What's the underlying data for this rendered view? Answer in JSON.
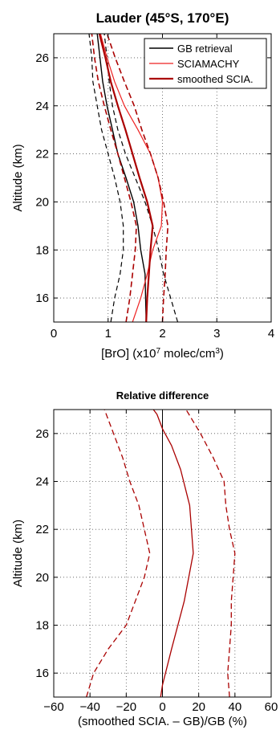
{
  "chart_data": [
    {
      "type": "line",
      "title": "Lauder (45°S, 170°E)",
      "ylabel": "Altitude (km)",
      "xlabel_parts": [
        "[BrO] (x10",
        "7",
        " molec/cm",
        "3",
        ")"
      ],
      "xlim": [
        0,
        4
      ],
      "ylim": [
        15,
        27
      ],
      "xticks": [
        "0",
        "1",
        "2",
        "3",
        "4"
      ],
      "yticks": [
        "16",
        "18",
        "20",
        "22",
        "24",
        "26"
      ],
      "grid": true,
      "legend_position": "top-right",
      "legend": [
        "GB retrieval",
        "SCIAMACHY",
        "smoothed SCIA."
      ],
      "series": [
        {
          "name": "GB retrieval",
          "color": "#000000",
          "width": 1.4,
          "dash": "",
          "legend": true,
          "points": [
            [
              1.7,
              15
            ],
            [
              1.69,
              16
            ],
            [
              1.68,
              17
            ],
            [
              1.6,
              18
            ],
            [
              1.55,
              19
            ],
            [
              1.47,
              20
            ],
            [
              1.33,
              21
            ],
            [
              1.18,
              22
            ],
            [
              1.08,
              23
            ],
            [
              0.98,
              24
            ],
            [
              0.9,
              25
            ],
            [
              0.85,
              26
            ],
            [
              0.8,
              27
            ]
          ]
        },
        {
          "name": "GB upper",
          "color": "#000000",
          "width": 1.2,
          "dash": "6,4",
          "legend": false,
          "points": [
            [
              2.28,
              15
            ],
            [
              2.15,
              16
            ],
            [
              2.02,
              17
            ],
            [
              1.93,
              18
            ],
            [
              1.82,
              19
            ],
            [
              1.68,
              20
            ],
            [
              1.5,
              21
            ],
            [
              1.32,
              22
            ],
            [
              1.18,
              23
            ],
            [
              1.08,
              24
            ],
            [
              1.02,
              25
            ],
            [
              0.98,
              26
            ],
            [
              0.93,
              27
            ]
          ]
        },
        {
          "name": "GB lower",
          "color": "#000000",
          "width": 1.2,
          "dash": "6,4",
          "legend": false,
          "points": [
            [
              1.05,
              15
            ],
            [
              1.12,
              16
            ],
            [
              1.22,
              17
            ],
            [
              1.28,
              18
            ],
            [
              1.28,
              19
            ],
            [
              1.22,
              20
            ],
            [
              1.12,
              21
            ],
            [
              1.0,
              22
            ],
            [
              0.88,
              23
            ],
            [
              0.8,
              24
            ],
            [
              0.72,
              25
            ],
            [
              0.7,
              26
            ],
            [
              0.65,
              27
            ]
          ]
        },
        {
          "name": "SCIAMACHY",
          "color": "#ee2222",
          "width": 1.2,
          "dash": "",
          "legend": true,
          "points": [
            [
              1.45,
              15
            ],
            [
              1.6,
              16
            ],
            [
              1.72,
              17
            ],
            [
              1.82,
              18
            ],
            [
              1.98,
              19
            ],
            [
              2.0,
              20
            ],
            [
              1.92,
              21
            ],
            [
              1.78,
              22
            ],
            [
              1.55,
              23
            ],
            [
              1.3,
              24
            ],
            [
              1.12,
              25
            ],
            [
              0.98,
              26
            ],
            [
              0.86,
              27
            ]
          ]
        },
        {
          "name": "smoothed SCIA.",
          "color": "#aa0000",
          "width": 2.2,
          "dash": "",
          "legend": true,
          "points": [
            [
              1.7,
              15
            ],
            [
              1.72,
              16
            ],
            [
              1.75,
              17
            ],
            [
              1.78,
              18
            ],
            [
              1.82,
              19
            ],
            [
              1.72,
              20
            ],
            [
              1.58,
              21
            ],
            [
              1.45,
              22
            ],
            [
              1.32,
              23
            ],
            [
              1.18,
              24
            ],
            [
              1.05,
              25
            ],
            [
              0.95,
              26
            ],
            [
              0.84,
              27
            ]
          ]
        },
        {
          "name": "smoothed upper",
          "color": "#aa0000",
          "width": 1.6,
          "dash": "7,4",
          "legend": false,
          "points": [
            [
              2.0,
              15
            ],
            [
              2.02,
              16
            ],
            [
              2.05,
              17
            ],
            [
              2.07,
              18
            ],
            [
              2.1,
              19
            ],
            [
              2.02,
              20
            ],
            [
              1.92,
              21
            ],
            [
              1.78,
              22
            ],
            [
              1.62,
              23
            ],
            [
              1.48,
              24
            ],
            [
              1.3,
              25
            ],
            [
              1.13,
              26
            ],
            [
              0.98,
              27
            ]
          ]
        },
        {
          "name": "smoothed lower",
          "color": "#aa0000",
          "width": 1.6,
          "dash": "7,4",
          "legend": false,
          "points": [
            [
              1.33,
              15
            ],
            [
              1.4,
              16
            ],
            [
              1.45,
              17
            ],
            [
              1.5,
              18
            ],
            [
              1.52,
              19
            ],
            [
              1.42,
              20
            ],
            [
              1.3,
              21
            ],
            [
              1.18,
              22
            ],
            [
              1.05,
              23
            ],
            [
              0.93,
              24
            ],
            [
              0.82,
              25
            ],
            [
              0.75,
              26
            ],
            [
              0.7,
              27
            ]
          ]
        }
      ]
    },
    {
      "type": "line",
      "title": "Relative difference",
      "ylabel": "Altitude (km)",
      "xlabel": "(smoothed SCIA. – GB)/GB (%)",
      "xlim": [
        -60,
        60
      ],
      "ylim": [
        15,
        27
      ],
      "xticks": [
        "−60",
        "−40",
        "−20",
        "0",
        "20",
        "40",
        "60"
      ],
      "yticks": [
        "16",
        "18",
        "20",
        "22",
        "24",
        "26"
      ],
      "grid": true,
      "zero_line": true,
      "series": [
        {
          "name": "difference",
          "color": "#aa0000",
          "width": 1.3,
          "dash": "",
          "points": [
            [
              -1,
              15
            ],
            [
              0,
              15.5
            ],
            [
              5,
              17
            ],
            [
              12,
              19
            ],
            [
              17,
              21
            ],
            [
              15,
              23
            ],
            [
              10,
              24.5
            ],
            [
              5,
              25.5
            ],
            [
              0,
              26.2
            ],
            [
              -3,
              26.8
            ],
            [
              -5,
              27
            ]
          ]
        },
        {
          "name": "upper",
          "color": "#aa0000",
          "width": 1.3,
          "dash": "7,4",
          "points": [
            [
              37,
              15
            ],
            [
              36,
              16
            ],
            [
              37,
              17
            ],
            [
              38,
              18
            ],
            [
              38,
              19
            ],
            [
              39,
              20
            ],
            [
              40,
              21
            ],
            [
              37,
              22
            ],
            [
              35,
              23
            ],
            [
              34,
              24
            ],
            [
              28,
              25
            ],
            [
              21,
              26
            ],
            [
              13,
              27
            ]
          ]
        },
        {
          "name": "lower",
          "color": "#aa0000",
          "width": 1.3,
          "dash": "7,4",
          "points": [
            [
              -42,
              15
            ],
            [
              -38,
              16
            ],
            [
              -30,
              17
            ],
            [
              -20,
              18
            ],
            [
              -15,
              19
            ],
            [
              -10,
              20
            ],
            [
              -7,
              21
            ],
            [
              -10,
              22
            ],
            [
              -13,
              23
            ],
            [
              -18,
              24
            ],
            [
              -22,
              25
            ],
            [
              -27,
              26
            ],
            [
              -32,
              27
            ]
          ]
        }
      ]
    }
  ]
}
